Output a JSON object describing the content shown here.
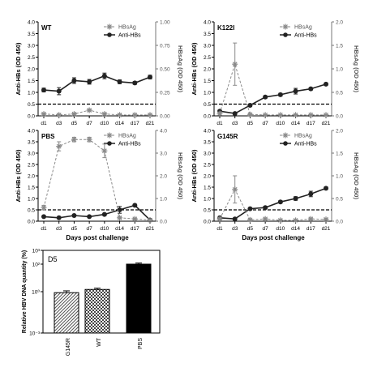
{
  "x_ticks": [
    "d1",
    "d3",
    "d5",
    "d7",
    "d10",
    "d14",
    "d17",
    "d21"
  ],
  "xlabel": "Days post challenge",
  "ylabel_left": "Anti-HBs (OD 450)",
  "ylabel_right": "HBsAg (OD 450)",
  "legend": {
    "hbsag": "HBsAg",
    "antihbs": "Anti-HBs"
  },
  "colors": {
    "hbsag": "#8a8a8a",
    "antihbs": "#222222",
    "cutoff": "#000000"
  },
  "chart_data": [
    {
      "type": "line",
      "panel": "WT",
      "x": [
        "d1",
        "d3",
        "d5",
        "d7",
        "d10",
        "d14",
        "d17",
        "d21"
      ],
      "left_axis": {
        "label": "Anti-HBs (OD 450)",
        "ylim": [
          0,
          4
        ],
        "ticks": [
          "0.0",
          "0.5",
          "1.0",
          "1.5",
          "2.0",
          "2.5",
          "3.0",
          "3.5",
          "4.0"
        ]
      },
      "right_axis": {
        "label": "HBsAg (OD 450)",
        "ylim": [
          0,
          1
        ],
        "ticks": [
          "0.00",
          "0.25",
          "0.50",
          "0.75",
          "1.00"
        ]
      },
      "cutoff": 0.5,
      "series": [
        {
          "name": "Anti-HBs",
          "axis": "left",
          "style": "solid",
          "values": [
            1.1,
            1.05,
            1.5,
            1.45,
            1.7,
            1.45,
            1.4,
            1.65
          ],
          "errors": [
            0.08,
            0.15,
            0.12,
            0.1,
            0.12,
            0.08,
            0.06,
            0.08
          ]
        },
        {
          "name": "HBsAg",
          "axis": "right",
          "style": "dashed",
          "values": [
            0.02,
            0.01,
            0.02,
            0.06,
            0.02,
            0.01,
            0.01,
            0.01
          ],
          "errors": [
            0.01,
            0.01,
            0.01,
            0.01,
            0.01,
            0.01,
            0.01,
            0.01
          ]
        }
      ]
    },
    {
      "type": "line",
      "panel": "K122I",
      "x": [
        "d1",
        "d3",
        "d5",
        "d7",
        "d10",
        "d14",
        "d17",
        "d21"
      ],
      "left_axis": {
        "label": "Anti-HBs (OD 450)",
        "ylim": [
          0,
          4
        ],
        "ticks": [
          "0.0",
          "0.5",
          "1.0",
          "1.5",
          "2.0",
          "2.5",
          "3.0",
          "3.5",
          "4.0"
        ]
      },
      "right_axis": {
        "label": "HBsAg (OD 450)",
        "ylim": [
          0,
          2
        ],
        "ticks": [
          "0.0",
          "0.5",
          "1.0",
          "1.5",
          "2.0"
        ]
      },
      "cutoff": 0.5,
      "series": [
        {
          "name": "Anti-HBs",
          "axis": "left",
          "style": "solid",
          "values": [
            0.2,
            0.1,
            0.45,
            0.8,
            0.9,
            1.05,
            1.15,
            1.35
          ],
          "errors": [
            0.04,
            0.04,
            0.05,
            0.05,
            0.06,
            0.12,
            0.05,
            0.05
          ]
        },
        {
          "name": "HBsAg",
          "axis": "right",
          "style": "dashed",
          "values": [
            0.05,
            1.1,
            0.03,
            0.02,
            0.02,
            0.02,
            0.02,
            0.02
          ],
          "errors": [
            0.03,
            0.45,
            0.01,
            0.01,
            0.01,
            0.01,
            0.01,
            0.01
          ]
        }
      ]
    },
    {
      "type": "line",
      "panel": "PBS",
      "x": [
        "d1",
        "d3",
        "d5",
        "d7",
        "d10",
        "d14",
        "d17",
        "d21"
      ],
      "left_axis": {
        "label": "Anti-HBs (OD 450)",
        "ylim": [
          0,
          4
        ],
        "ticks": [
          "0.0",
          "0.5",
          "1.0",
          "1.5",
          "2.0",
          "2.5",
          "3.0",
          "3.5",
          "4.0"
        ]
      },
      "right_axis": {
        "label": "HBsAg (OD 450)",
        "ylim": [
          0,
          4
        ],
        "ticks": [
          "0.0",
          "1.0",
          "2.0",
          "3.0",
          "4.0"
        ]
      },
      "cutoff": 0.5,
      "series": [
        {
          "name": "Anti-HBs",
          "axis": "left",
          "style": "solid",
          "values": [
            0.2,
            0.15,
            0.25,
            0.2,
            0.3,
            0.5,
            0.7,
            0.05
          ],
          "errors": [
            0.03,
            0.03,
            0.03,
            0.03,
            0.05,
            0.15,
            0.05,
            0.03
          ]
        },
        {
          "name": "HBsAg",
          "axis": "right",
          "style": "dashed",
          "values": [
            0.6,
            3.3,
            3.6,
            3.6,
            3.1,
            0.15,
            0.1,
            0.05
          ],
          "errors": [
            0.1,
            0.2,
            0.1,
            0.1,
            0.3,
            0.05,
            0.03,
            0.03
          ]
        }
      ]
    },
    {
      "type": "line",
      "panel": "G145R",
      "x": [
        "d1",
        "d3",
        "d5",
        "d7",
        "d10",
        "d14",
        "d17",
        "d21"
      ],
      "left_axis": {
        "label": "Anti-HBs (OD 450)",
        "ylim": [
          0,
          4
        ],
        "ticks": [
          "0.0",
          "0.5",
          "1.0",
          "1.5",
          "2.0",
          "2.5",
          "3.0",
          "3.5",
          "4.0"
        ]
      },
      "right_axis": {
        "label": "HBsAg (OD 450)",
        "ylim": [
          0,
          2
        ],
        "ticks": [
          "0.0",
          "0.5",
          "1.0",
          "1.5",
          "2.0"
        ]
      },
      "cutoff": 0.5,
      "series": [
        {
          "name": "Anti-HBs",
          "axis": "left",
          "style": "solid",
          "values": [
            0.15,
            0.1,
            0.55,
            0.6,
            0.85,
            1.0,
            1.2,
            1.45
          ],
          "errors": [
            0.03,
            0.03,
            0.05,
            0.05,
            0.05,
            0.08,
            0.12,
            0.06
          ]
        },
        {
          "name": "HBsAg",
          "axis": "right",
          "style": "dashed",
          "values": [
            0.05,
            0.7,
            0.03,
            0.05,
            0.02,
            0.02,
            0.05,
            0.04
          ],
          "errors": [
            0.02,
            0.3,
            0.02,
            0.02,
            0.01,
            0.01,
            0.02,
            0.02
          ]
        }
      ]
    },
    {
      "type": "bar",
      "panel": "D5",
      "categories": [
        "G145R",
        "WT",
        "PBS"
      ],
      "values": [
        0.85,
        1.45,
        100
      ],
      "errors": [
        0.3,
        0.35,
        20
      ],
      "ylabel": "Relative HBV DNA quantity (%)",
      "yscale": "log",
      "ylim": [
        0.001,
        1000
      ],
      "yticks": [
        "10⁻³",
        "10⁰",
        "10²",
        "10³"
      ],
      "patterns": [
        "hatched",
        "checkered",
        "solid-black"
      ]
    }
  ]
}
